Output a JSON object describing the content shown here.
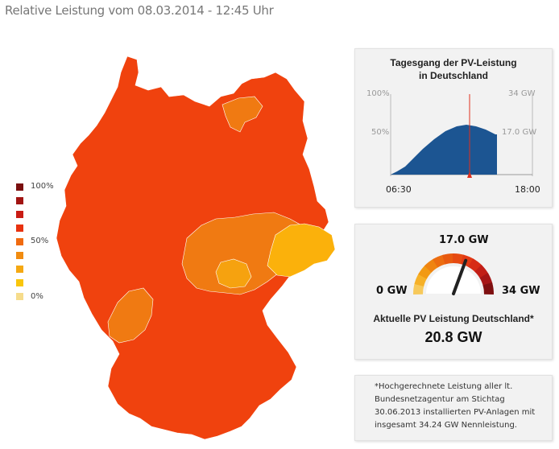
{
  "page": {
    "title": "Relative Leistung vom 08.03.2014 - 12:45 Uhr"
  },
  "legend": {
    "label_top": "100%",
    "label_mid": "50%",
    "label_bottom": "0%",
    "colors": [
      "#7a0f0f",
      "#a11412",
      "#c91c14",
      "#e8320f",
      "#f06a0f",
      "#f18c10",
      "#f5a812",
      "#f9c60c",
      "#f6dc8c"
    ]
  },
  "map": {
    "regions": [
      {
        "name": "main",
        "color": "#f0420e"
      },
      {
        "name": "northeast",
        "color": "#f07a12"
      },
      {
        "name": "central",
        "color": "#f07a12"
      },
      {
        "name": "central-light",
        "color": "#f6a20f"
      },
      {
        "name": "east-yellow",
        "color": "#fbb10b"
      },
      {
        "name": "southwest",
        "color": "#f07a12"
      }
    ]
  },
  "daily_chart": {
    "title_line1": "Tagesgang der PV-Leistung",
    "title_line2": "in Deutschland",
    "left_top": "100%",
    "left_mid": "50%",
    "right_top": "34 GW",
    "right_mid": "17.0 GW",
    "time_start": "06:30",
    "time_end": "18:00",
    "fill_color": "#1c5592",
    "marker_color": "#e0301e"
  },
  "gauge": {
    "top_label": "17.0 GW",
    "min_label": "0 GW",
    "max_label": "34 GW",
    "caption": "Aktuelle PV Leistung Deutschland*",
    "value": "20.8 GW",
    "fraction": 0.612
  },
  "footnote": {
    "line1": "*Hochgerechnete Leistung aller lt.",
    "line2": "Bundesnetzagentur am Stichtag",
    "line3": "30.06.2013 installierten PV-Anlagen mit",
    "line4": "insgesamt 34.24 GW Nennleistung."
  }
}
